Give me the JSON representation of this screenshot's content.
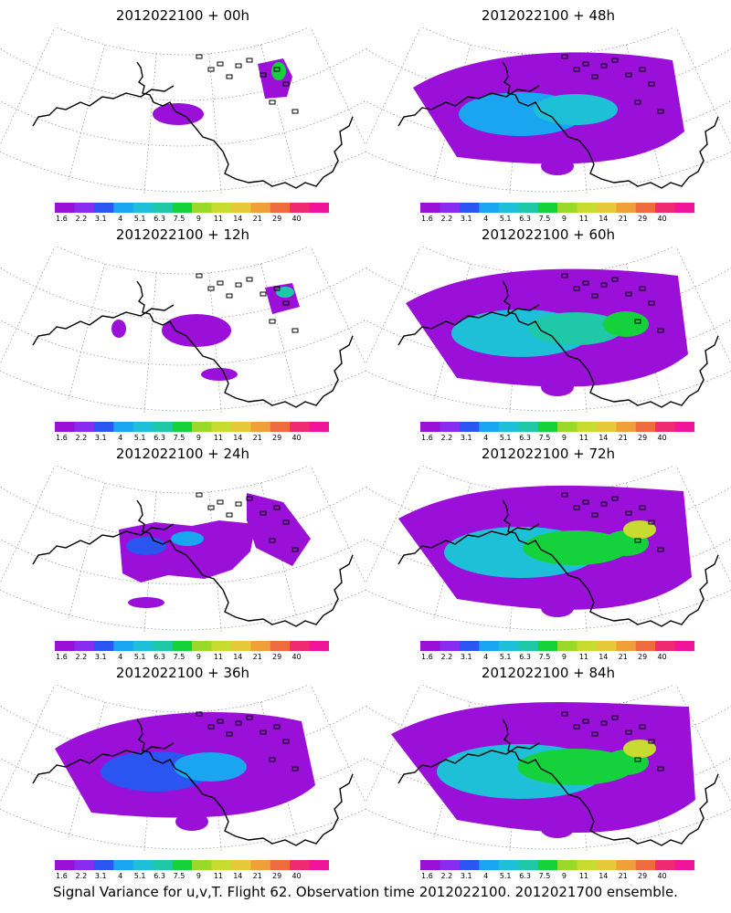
{
  "footer": "Signal Variance for u,v,T. Flight 62. Observation time 2012022100. 2012021700 ensemble.",
  "colorbar": {
    "labels": [
      "1.6",
      "2.2",
      "3.1",
      "4",
      "5.1",
      "6.3",
      "7.5",
      "9",
      "11",
      "14",
      "21",
      "29",
      "40"
    ],
    "colors": [
      "#9a10d8",
      "#8a2cf0",
      "#2a55f0",
      "#1aa5f0",
      "#1ec0d8",
      "#1ec8a8",
      "#15d23c",
      "#9ad82a",
      "#c8dc30",
      "#e6c83a",
      "#f0a038",
      "#f06a40",
      "#f02a70",
      "#f0149a"
    ]
  },
  "panels": [
    {
      "title": "2012022100 + 00h",
      "level": 0
    },
    {
      "title": "2012022100 + 48h",
      "level": 4
    },
    {
      "title": "2012022100 + 12h",
      "level": 1
    },
    {
      "title": "2012022100 + 60h",
      "level": 5
    },
    {
      "title": "2012022100 + 24h",
      "level": 2
    },
    {
      "title": "2012022100 + 72h",
      "level": 6
    },
    {
      "title": "2012022100 + 36h",
      "level": 3
    },
    {
      "title": "2012022100 + 84h",
      "level": 7
    }
  ]
}
